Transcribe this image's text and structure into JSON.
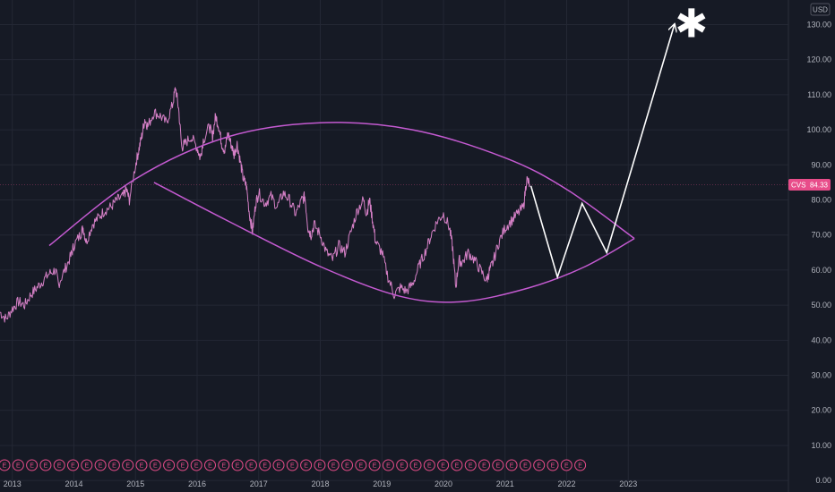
{
  "chart_data": {
    "type": "line",
    "symbol": "CVS",
    "last_price_label": "84.33",
    "last_price": 84.33,
    "currency": "USD",
    "y_ticks": [
      0,
      10,
      20,
      30,
      40,
      50,
      60,
      70,
      80,
      90,
      100,
      110,
      120,
      130
    ],
    "y_tick_labels": [
      "0.00",
      "10.00",
      "20.00",
      "30.00",
      "40.00",
      "50.00",
      "60.00",
      "70.00",
      "80.00",
      "90.00",
      "100.00",
      "110.00",
      "120.00",
      "130.00"
    ],
    "ylim": [
      -2,
      137
    ],
    "xlim": [
      2012.8,
      2025.6
    ],
    "x_ticks": [
      2013,
      2014,
      2015,
      2016,
      2017,
      2018,
      2019,
      2020,
      2021,
      2022,
      2023
    ],
    "x_tick_labels": [
      "2013",
      "2014",
      "2015",
      "2016",
      "2017",
      "2018",
      "2019",
      "2020",
      "2021",
      "2022",
      "2023"
    ],
    "grid": true,
    "colors": {
      "price": "#d580c6",
      "curve": "#c45ad1",
      "projection": "#ffffff",
      "earnings": "#e84d8a",
      "tag": "#e84d8a",
      "background": "#161a25"
    },
    "price_series": [
      [
        2012.8,
        48
      ],
      [
        2012.9,
        46
      ],
      [
        2013.0,
        49
      ],
      [
        2013.1,
        51
      ],
      [
        2013.2,
        50
      ],
      [
        2013.3,
        53
      ],
      [
        2013.4,
        55
      ],
      [
        2013.5,
        57
      ],
      [
        2013.6,
        59
      ],
      [
        2013.7,
        60
      ],
      [
        2013.75,
        56
      ],
      [
        2013.85,
        60
      ],
      [
        2013.95,
        64
      ],
      [
        2014.0,
        67
      ],
      [
        2014.1,
        70
      ],
      [
        2014.15,
        72
      ],
      [
        2014.2,
        68
      ],
      [
        2014.3,
        73
      ],
      [
        2014.4,
        75
      ],
      [
        2014.5,
        77
      ],
      [
        2014.6,
        78
      ],
      [
        2014.7,
        80
      ],
      [
        2014.8,
        81
      ],
      [
        2014.85,
        83
      ],
      [
        2014.9,
        80
      ],
      [
        2015.0,
        90
      ],
      [
        2015.05,
        94
      ],
      [
        2015.1,
        98
      ],
      [
        2015.15,
        103
      ],
      [
        2015.2,
        101
      ],
      [
        2015.3,
        105
      ],
      [
        2015.4,
        104
      ],
      [
        2015.5,
        102
      ],
      [
        2015.6,
        107
      ],
      [
        2015.65,
        112
      ],
      [
        2015.7,
        106
      ],
      [
        2015.75,
        95
      ],
      [
        2015.8,
        96
      ],
      [
        2015.9,
        98
      ],
      [
        2016.0,
        95
      ],
      [
        2016.05,
        92
      ],
      [
        2016.1,
        97
      ],
      [
        2016.2,
        101
      ],
      [
        2016.25,
        98
      ],
      [
        2016.3,
        104
      ],
      [
        2016.35,
        101
      ],
      [
        2016.4,
        96
      ],
      [
        2016.45,
        94
      ],
      [
        2016.5,
        99
      ],
      [
        2016.55,
        96
      ],
      [
        2016.6,
        93
      ],
      [
        2016.65,
        96
      ],
      [
        2016.7,
        91
      ],
      [
        2016.75,
        86
      ],
      [
        2016.8,
        84
      ],
      [
        2016.85,
        76
      ],
      [
        2016.9,
        71
      ],
      [
        2016.95,
        79
      ],
      [
        2017.0,
        82
      ],
      [
        2017.1,
        79
      ],
      [
        2017.2,
        81
      ],
      [
        2017.3,
        78
      ],
      [
        2017.4,
        82
      ],
      [
        2017.5,
        80
      ],
      [
        2017.6,
        76
      ],
      [
        2017.7,
        80
      ],
      [
        2017.75,
        81
      ],
      [
        2017.8,
        72
      ],
      [
        2017.85,
        70
      ],
      [
        2017.9,
        73
      ],
      [
        2018.0,
        70
      ],
      [
        2018.1,
        65
      ],
      [
        2018.2,
        63
      ],
      [
        2018.3,
        67
      ],
      [
        2018.4,
        65
      ],
      [
        2018.5,
        71
      ],
      [
        2018.6,
        77
      ],
      [
        2018.7,
        80
      ],
      [
        2018.75,
        76
      ],
      [
        2018.8,
        80
      ],
      [
        2018.85,
        74
      ],
      [
        2018.9,
        68
      ],
      [
        2019.0,
        65
      ],
      [
        2019.1,
        58
      ],
      [
        2019.2,
        53
      ],
      [
        2019.3,
        55
      ],
      [
        2019.4,
        54
      ],
      [
        2019.5,
        56
      ],
      [
        2019.6,
        61
      ],
      [
        2019.7,
        65
      ],
      [
        2019.8,
        70
      ],
      [
        2019.9,
        74
      ],
      [
        2020.0,
        76
      ],
      [
        2020.1,
        72
      ],
      [
        2020.15,
        66
      ],
      [
        2020.2,
        55
      ],
      [
        2020.25,
        63
      ],
      [
        2020.3,
        62
      ],
      [
        2020.4,
        65
      ],
      [
        2020.5,
        63
      ],
      [
        2020.6,
        60
      ],
      [
        2020.7,
        57
      ],
      [
        2020.75,
        60
      ],
      [
        2020.8,
        62
      ],
      [
        2020.9,
        68
      ],
      [
        2021.0,
        72
      ],
      [
        2021.1,
        74
      ],
      [
        2021.2,
        76
      ],
      [
        2021.3,
        78
      ],
      [
        2021.35,
        86
      ],
      [
        2021.4,
        84.33
      ]
    ],
    "annotations": {
      "upper_arc": [
        [
          2013.6,
          67
        ],
        [
          2015.0,
          86
        ],
        [
          2016.5,
          98
        ],
        [
          2018.0,
          102
        ],
        [
          2019.5,
          100
        ],
        [
          2021.0,
          92
        ],
        [
          2022.0,
          83
        ],
        [
          2023.1,
          69
        ]
      ],
      "lower_arc": [
        [
          2015.3,
          85
        ],
        [
          2016.5,
          74
        ],
        [
          2018.0,
          61
        ],
        [
          2019.3,
          52.5
        ],
        [
          2020.3,
          51
        ],
        [
          2021.4,
          55
        ],
        [
          2022.3,
          61
        ],
        [
          2023.1,
          69
        ]
      ],
      "projection_zigzag": [
        [
          2021.42,
          84
        ],
        [
          2021.85,
          58
        ],
        [
          2022.25,
          79
        ],
        [
          2022.65,
          65
        ],
        [
          2023.75,
          130
        ]
      ],
      "arrow_end": [
        2023.75,
        130
      ],
      "asterisk_label": "✱",
      "earnings_marker": "E",
      "earnings_count": 43
    }
  }
}
